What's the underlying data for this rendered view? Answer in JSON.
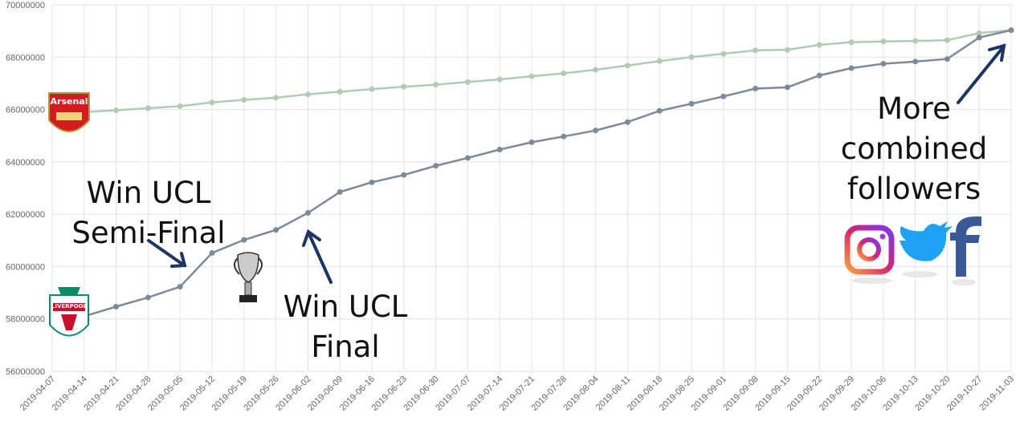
{
  "chart_data": {
    "type": "line",
    "x": [
      "2019-04-07",
      "2019-04-14",
      "2019-04-21",
      "2019-04-28",
      "2019-05-05",
      "2019-05-12",
      "2019-05-19",
      "2019-05-26",
      "2019-06-02",
      "2019-06-09",
      "2019-06-16",
      "2019-06-23",
      "2019-06-30",
      "2019-07-07",
      "2019-07-14",
      "2019-07-21",
      "2019-07-28",
      "2019-08-04",
      "2019-08-11",
      "2019-08-18",
      "2019-08-25",
      "2019-09-01",
      "2019-09-08",
      "2019-09-15",
      "2019-09-22",
      "2019-09-29",
      "2019-10-06",
      "2019-10-13",
      "2019-10-20",
      "2019-10-27",
      "2019-11-03"
    ],
    "series": [
      {
        "name": "Arsenal",
        "color": "#b3cbb5",
        "values": [
          null,
          65900000,
          65970000,
          66050000,
          66130000,
          66270000,
          66370000,
          66450000,
          66580000,
          66680000,
          66780000,
          66870000,
          66950000,
          67050000,
          67150000,
          67270000,
          67380000,
          67520000,
          67680000,
          67850000,
          68000000,
          68130000,
          68260000,
          68280000,
          68470000,
          68570000,
          68600000,
          68620000,
          68650000,
          68920000,
          69030000
        ]
      },
      {
        "name": "LIVERPOOL",
        "color": "#7d8a99",
        "values": [
          null,
          58100000,
          58470000,
          58820000,
          59230000,
          60520000,
          61020000,
          61400000,
          62050000,
          62850000,
          63220000,
          63500000,
          63850000,
          64150000,
          64470000,
          64750000,
          64970000,
          65200000,
          65520000,
          65950000,
          66220000,
          66500000,
          66800000,
          66850000,
          67300000,
          67580000,
          67750000,
          67830000,
          67930000,
          68750000,
          69030000
        ]
      }
    ],
    "ylim": [
      56000000,
      70000000
    ],
    "yticks": [
      56000000,
      58000000,
      60000000,
      62000000,
      64000000,
      66000000,
      68000000,
      70000000
    ],
    "grid": true,
    "annotations": [
      {
        "lines": [
          "Win UCL",
          "Semi-Final"
        ]
      },
      {
        "lines": [
          "Win UCL",
          "Final"
        ]
      },
      {
        "lines": [
          "More",
          "combined",
          "followers"
        ]
      }
    ]
  }
}
